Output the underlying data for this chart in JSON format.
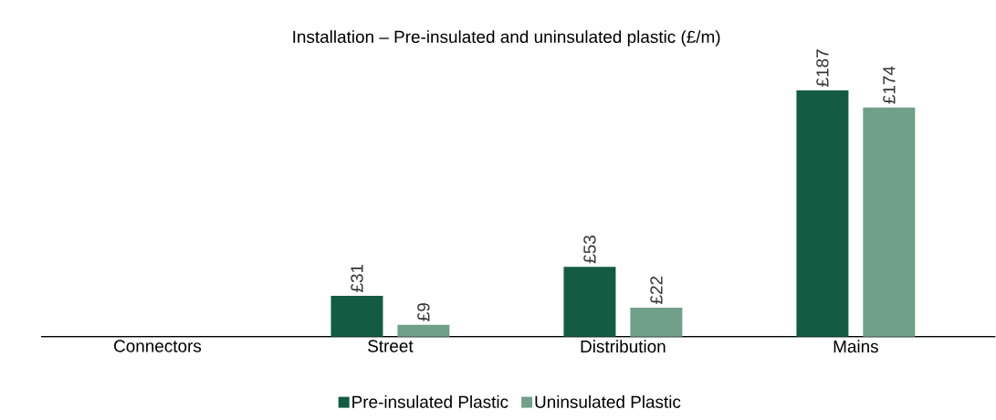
{
  "chart_data": {
    "type": "bar",
    "title": "Installation – Pre-insulated and uninsulated plastic (£/m)",
    "categories": [
      "Connectors",
      "Street",
      "Distribution",
      "Mains"
    ],
    "series": [
      {
        "name": "Pre-insulated Plastic",
        "color": "#135c43",
        "values": [
          null,
          31,
          53,
          187
        ],
        "value_labels": [
          null,
          "£31",
          "£53",
          "£187"
        ]
      },
      {
        "name": "Uninsulated Plastic",
        "color": "#709f8a",
        "values": [
          null,
          9,
          22,
          174
        ],
        "value_labels": [
          null,
          "£9",
          "£22",
          "£174"
        ]
      }
    ],
    "legend": "bottom"
  }
}
